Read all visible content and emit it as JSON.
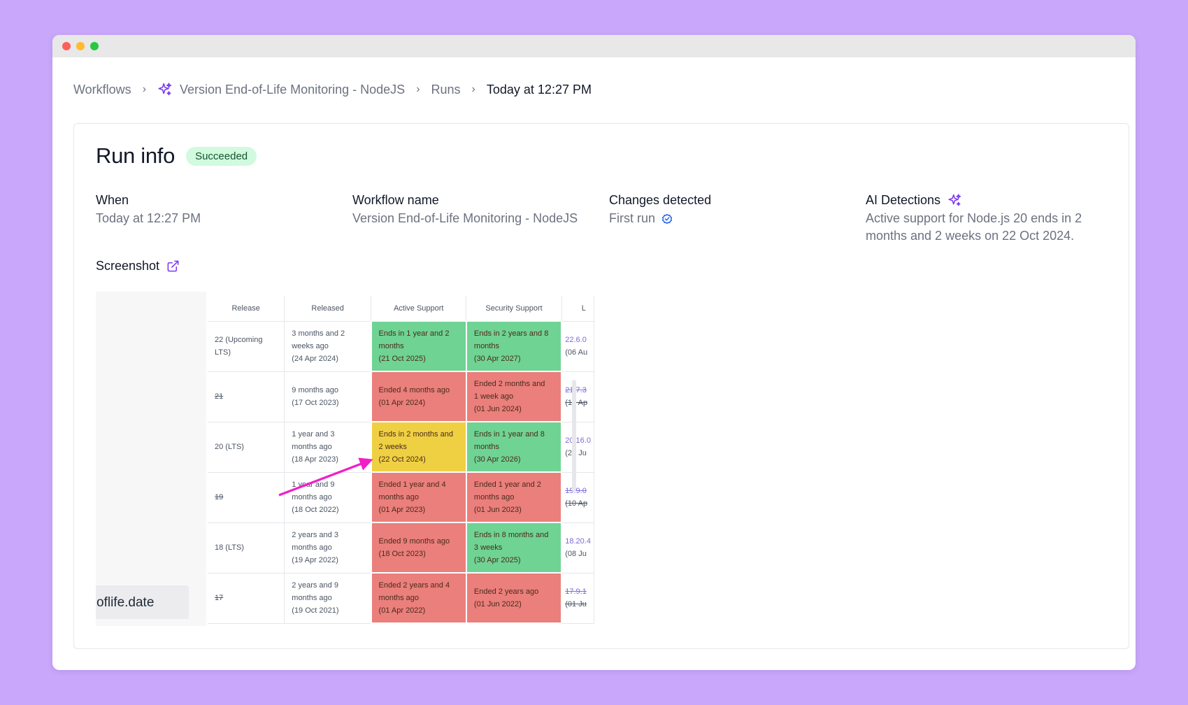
{
  "breadcrumb": {
    "items": [
      {
        "label": "Workflows"
      },
      {
        "label": "Version End-of-Life Monitoring - NodeJS",
        "icon": "sparkle-icon"
      },
      {
        "label": "Runs"
      },
      {
        "label": "Today at 12:27 PM",
        "current": true
      }
    ]
  },
  "run": {
    "title": "Run info",
    "status": "Succeeded",
    "status_color": "#d1fadf"
  },
  "info": {
    "when_label": "When",
    "when_value": "Today at 12:27 PM",
    "workflow_label": "Workflow name",
    "workflow_value": "Version End-of-Life Monitoring - NodeJS",
    "changes_label": "Changes detected",
    "changes_value": "First run",
    "ai_label": "AI Detections",
    "ai_value": "Active support for Node.js 20 ends in 2 months and 2 weeks on 22 Oct 2024."
  },
  "screenshot": {
    "label": "Screenshot",
    "brand_text": "oflife.date",
    "headers": [
      "Release",
      "Released",
      "Active Support",
      "Security Support",
      "L"
    ],
    "rows": [
      {
        "release": "22 (Upcoming LTS)",
        "released": [
          "3 months and 2",
          "weeks ago",
          "(24 Apr 2024)"
        ],
        "active": [
          "Ends in 1 year and 2",
          "months",
          "(21 Oct 2025)"
        ],
        "active_status": "green",
        "security": [
          "Ends in 2 years and 8",
          "months",
          "(30 Apr 2027)"
        ],
        "security_status": "green",
        "latest": [
          "22.6.0",
          "(06 Au"
        ]
      },
      {
        "release": "21",
        "released": [
          "9 months ago",
          "(17 Oct 2023)"
        ],
        "active": [
          "Ended 4 months ago",
          "(01 Apr 2024)"
        ],
        "active_status": "red",
        "security": [
          "Ended 2 months and",
          "1 week ago",
          "(01 Jun 2024)"
        ],
        "security_status": "red",
        "latest": [
          "21.7.3",
          "(10 Ap"
        ]
      },
      {
        "release": "20 (LTS)",
        "released": [
          "1 year and 3",
          "months ago",
          "(18 Apr 2023)"
        ],
        "active": [
          "Ends in 2 months and",
          "2 weeks",
          "(22 Oct 2024)"
        ],
        "active_status": "yellow",
        "security": [
          "Ends in 1 year and 8",
          "months",
          "(30 Apr 2026)"
        ],
        "security_status": "green",
        "latest": [
          "20.16.0",
          "(24 Ju"
        ]
      },
      {
        "release": "19",
        "released": [
          "1 year and 9",
          "months ago",
          "(18 Oct 2022)"
        ],
        "active": [
          "Ended 1 year and 4",
          "months ago",
          "(01 Apr 2023)"
        ],
        "active_status": "red",
        "security": [
          "Ended 1 year and 2",
          "months ago",
          "(01 Jun 2023)"
        ],
        "security_status": "red",
        "latest": [
          "19.9.0",
          "(10 Ap"
        ]
      },
      {
        "release": "18 (LTS)",
        "released": [
          "2 years and 3",
          "months ago",
          "(19 Apr 2022)"
        ],
        "active": [
          "Ended 9 months ago",
          "(18 Oct 2023)"
        ],
        "active_status": "red",
        "security": [
          "Ends in 8 months and",
          "3 weeks",
          "(30 Apr 2025)"
        ],
        "security_status": "green",
        "latest": [
          "18.20.4",
          "(08 Ju"
        ]
      },
      {
        "release": "17",
        "released": [
          "2 years and 9",
          "months ago",
          "(19 Oct 2021)"
        ],
        "active": [
          "Ended 2 years and 4",
          "months ago",
          "(01 Apr 2022)"
        ],
        "active_status": "red",
        "security": [
          "Ended 2 years ago",
          "(01 Jun 2022)"
        ],
        "security_status": "red",
        "latest": [
          "17.9.1",
          "(01 Ju"
        ]
      }
    ],
    "arrow_color": "#f01fc7"
  },
  "colors": {
    "accent": "#7c3aed",
    "status_green": "#6fd394",
    "status_red": "#ea7f7c",
    "status_yellow": "#efd043",
    "background": "#c9a8fb"
  }
}
